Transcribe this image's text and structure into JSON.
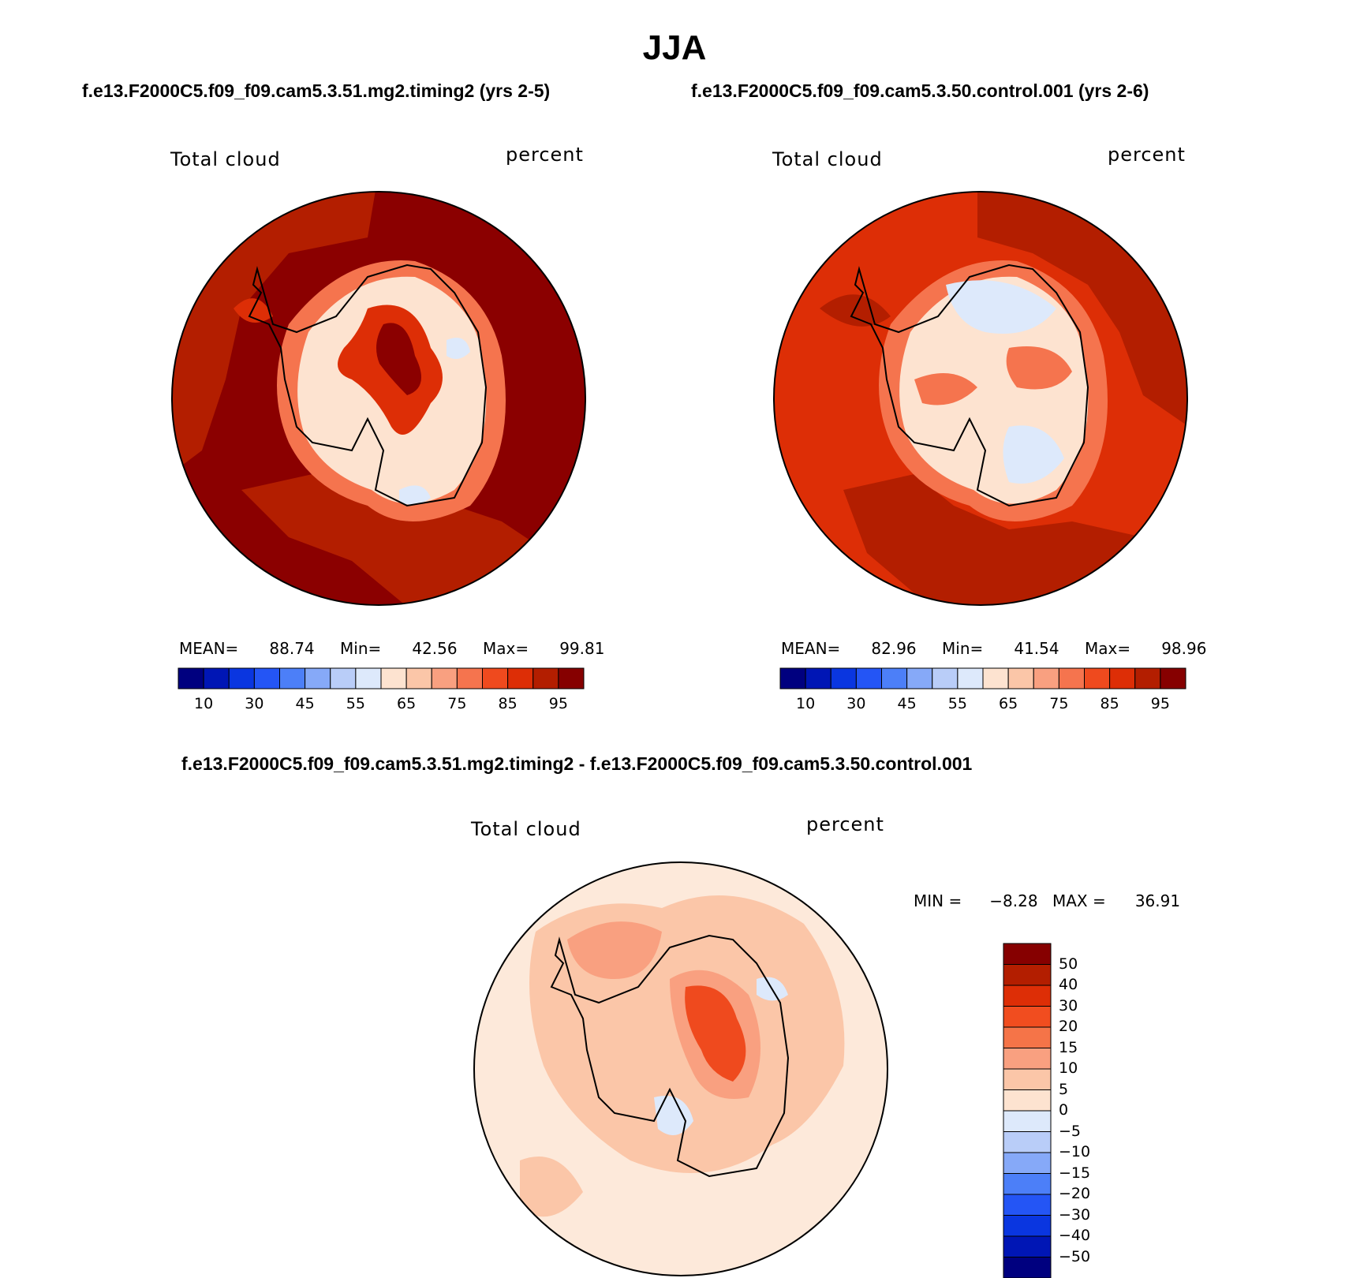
{
  "title": "JJA",
  "subtitles": {
    "left": "f.e13.F2000C5.f09_f09.cam5.3.51.mg2.timing2 (yrs 2-5)",
    "right": "f.e13.F2000C5.f09_f09.cam5.3.50.control.001 (yrs 2-6)",
    "diff": "f.e13.F2000C5.f09_f09.cam5.3.51.mg2.timing2 - f.e13.F2000C5.f09_f09.cam5.3.50.control.001"
  },
  "panels": [
    {
      "variable": "Total cloud",
      "units": "percent",
      "stats": {
        "mean_label": "MEAN=",
        "mean": "88.74",
        "min_label": "Min=",
        "min": "42.56",
        "max_label": "Max=",
        "max": "99.81"
      }
    },
    {
      "variable": "Total cloud",
      "units": "percent",
      "stats": {
        "mean_label": "MEAN=",
        "mean": "82.96",
        "min_label": "Min=",
        "min": "41.54",
        "max_label": "Max=",
        "max": "98.96"
      }
    }
  ],
  "diff_panel": {
    "variable": "Total cloud",
    "units": "percent",
    "stats": {
      "min_label": "MIN =",
      "min": "−8.28",
      "max_label": "MAX =",
      "max": "36.91"
    }
  },
  "colorbar_abs": {
    "colors": [
      "#00007f",
      "#0016b5",
      "#0a36e0",
      "#2455f5",
      "#4c7ff8",
      "#86a9f8",
      "#b9cdf8",
      "#dde9fb",
      "#fde3d0",
      "#fbc6a8",
      "#f9a080",
      "#f5744e",
      "#ef4a1e",
      "#dd2e06",
      "#b31e00",
      "#860000"
    ],
    "tick_labels": [
      "10",
      "30",
      "45",
      "55",
      "65",
      "75",
      "85",
      "95"
    ]
  },
  "colorbar_diff": {
    "colors": [
      "#860000",
      "#b31e00",
      "#dd2e06",
      "#f14d1f",
      "#f57448",
      "#f9a080",
      "#fbc6a8",
      "#fde3d0",
      "#dde9fb",
      "#b9cdf8",
      "#86a9f8",
      "#4c7ff8",
      "#2455f5",
      "#0a36e0",
      "#0016b5",
      "#00007f"
    ],
    "tick_labels": [
      "50",
      "40",
      "30",
      "20",
      "15",
      "10",
      "5",
      "0",
      "−5",
      "−10",
      "−15",
      "−20",
      "−30",
      "−40",
      "−50"
    ]
  },
  "map_palette": {
    "abs_outer": "#8b0000",
    "abs_outer2": "#b31e00",
    "abs_outer3": "#dd2e06",
    "abs_coast": "#f5744e",
    "abs_interior": "#fde3d0",
    "abs_interior_blue": "#dde9fb",
    "diff_ocean": "#fde9da",
    "diff_pos1": "#fbc6a8",
    "diff_pos2": "#f9a080",
    "diff_pos3": "#ef4a1e",
    "diff_neg": "#dde9fb"
  }
}
